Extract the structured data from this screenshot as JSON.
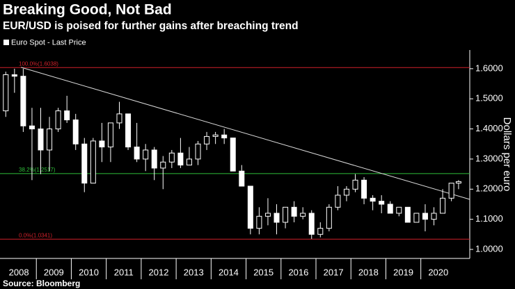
{
  "chart_data": {
    "type": "candlestick",
    "title": "Breaking Good, Not Bad",
    "subtitle": "EUR/USD is poised for further gains after breaching trend",
    "legend": "Euro Spot - Last Price",
    "y_axis_label": "Dollars per euro",
    "source": "Source: Bloomberg",
    "up_color": "#000000",
    "down_color": "#ffffff",
    "wick_color": "#ffffff",
    "xlim": [
      2008,
      2021.4
    ],
    "xticks": [
      {
        "value": 2008.5,
        "label": "2008"
      },
      {
        "value": 2009.5,
        "label": "2009"
      },
      {
        "value": 2010.5,
        "label": "2010"
      },
      {
        "value": 2011.5,
        "label": "2011"
      },
      {
        "value": 2012.5,
        "label": "2012"
      },
      {
        "value": 2013.5,
        "label": "2013"
      },
      {
        "value": 2014.5,
        "label": "2014"
      },
      {
        "value": 2015.5,
        "label": "2015"
      },
      {
        "value": 2016.5,
        "label": "2016"
      },
      {
        "value": 2017.5,
        "label": "2017"
      },
      {
        "value": 2018.5,
        "label": "2018"
      },
      {
        "value": 2019.5,
        "label": "2019"
      },
      {
        "value": 2020.5,
        "label": "2020"
      }
    ],
    "ylim": [
      0.97,
      1.662
    ],
    "yticks": [
      {
        "value": 1.0,
        "label": "1.0000"
      },
      {
        "value": 1.1,
        "label": "1.1000"
      },
      {
        "value": 1.2,
        "label": "1.2000"
      },
      {
        "value": 1.3,
        "label": "1.3000"
      },
      {
        "value": 1.4,
        "label": "1.4000"
      },
      {
        "value": 1.5,
        "label": "1.5000"
      },
      {
        "value": 1.6,
        "label": "1.6000"
      }
    ],
    "levels": [
      {
        "label": "100.0%(1.6038)",
        "value": 1.6038,
        "color": "#d0202a"
      },
      {
        "label": "38.2%(1.2517)",
        "value": 1.2517,
        "color": "#2fbf3a"
      },
      {
        "label": "0.0%(1.0341)",
        "value": 1.0341,
        "color": "#d0202a"
      }
    ],
    "trendline": {
      "color": "#dddddd",
      "x": [
        2008.56,
        2021.4
      ],
      "y": [
        1.6046,
        1.166
      ]
    },
    "x": [
      2008.125,
      2008.375,
      2008.625,
      2008.875,
      2009.125,
      2009.375,
      2009.625,
      2009.875,
      2010.125,
      2010.375,
      2010.625,
      2010.875,
      2011.125,
      2011.375,
      2011.625,
      2011.875,
      2012.125,
      2012.375,
      2012.625,
      2012.875,
      2013.125,
      2013.375,
      2013.625,
      2013.875,
      2014.125,
      2014.375,
      2014.625,
      2014.875,
      2015.125,
      2015.375,
      2015.625,
      2015.875,
      2016.125,
      2016.375,
      2016.625,
      2016.875,
      2017.125,
      2017.375,
      2017.625,
      2017.875,
      2018.125,
      2018.375,
      2018.625,
      2018.875,
      2019.125,
      2019.375,
      2019.625,
      2019.875,
      2020.125,
      2020.375,
      2020.625,
      2020.875,
      2021.08
    ],
    "open": [
      1.46,
      1.58,
      1.575,
      1.41,
      1.4,
      1.33,
      1.4,
      1.46,
      1.43,
      1.35,
      1.22,
      1.36,
      1.34,
      1.42,
      1.45,
      1.34,
      1.3,
      1.33,
      1.27,
      1.29,
      1.32,
      1.28,
      1.3,
      1.35,
      1.375,
      1.38,
      1.37,
      1.26,
      1.21,
      1.07,
      1.11,
      1.12,
      1.09,
      1.14,
      1.11,
      1.12,
      1.05,
      1.07,
      1.14,
      1.18,
      1.2,
      1.23,
      1.17,
      1.16,
      1.15,
      1.12,
      1.14,
      1.09,
      1.12,
      1.1,
      1.12,
      1.17,
      1.22
    ],
    "high": [
      1.59,
      1.6,
      1.6,
      1.47,
      1.47,
      1.44,
      1.47,
      1.51,
      1.45,
      1.37,
      1.37,
      1.42,
      1.42,
      1.49,
      1.45,
      1.42,
      1.35,
      1.34,
      1.31,
      1.33,
      1.37,
      1.34,
      1.36,
      1.39,
      1.39,
      1.4,
      1.37,
      1.28,
      1.21,
      1.14,
      1.17,
      1.15,
      1.14,
      1.16,
      1.14,
      1.13,
      1.09,
      1.15,
      1.21,
      1.21,
      1.25,
      1.24,
      1.18,
      1.18,
      1.16,
      1.14,
      1.14,
      1.12,
      1.15,
      1.14,
      1.2,
      1.22,
      1.23
    ],
    "low": [
      1.44,
      1.52,
      1.39,
      1.23,
      1.25,
      1.26,
      1.39,
      1.42,
      1.33,
      1.19,
      1.22,
      1.29,
      1.29,
      1.4,
      1.33,
      1.29,
      1.26,
      1.23,
      1.2,
      1.27,
      1.27,
      1.28,
      1.28,
      1.33,
      1.35,
      1.35,
      1.26,
      1.21,
      1.05,
      1.05,
      1.08,
      1.05,
      1.07,
      1.09,
      1.1,
      1.035,
      1.04,
      1.06,
      1.13,
      1.16,
      1.19,
      1.15,
      1.13,
      1.12,
      1.12,
      1.11,
      1.09,
      1.09,
      1.06,
      1.08,
      1.12,
      1.16,
      1.2
    ],
    "close": [
      1.58,
      1.575,
      1.41,
      1.4,
      1.33,
      1.4,
      1.46,
      1.43,
      1.35,
      1.22,
      1.36,
      1.34,
      1.42,
      1.45,
      1.34,
      1.3,
      1.33,
      1.27,
      1.29,
      1.32,
      1.28,
      1.3,
      1.35,
      1.375,
      1.38,
      1.37,
      1.26,
      1.21,
      1.07,
      1.11,
      1.12,
      1.09,
      1.14,
      1.11,
      1.12,
      1.05,
      1.07,
      1.14,
      1.18,
      1.2,
      1.23,
      1.17,
      1.16,
      1.15,
      1.12,
      1.14,
      1.09,
      1.12,
      1.1,
      1.12,
      1.17,
      1.22,
      1.225
    ]
  }
}
